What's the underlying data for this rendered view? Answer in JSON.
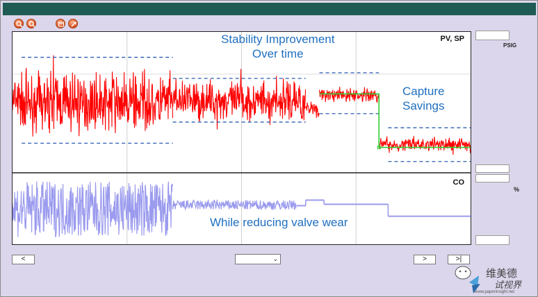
{
  "toolbar": {
    "icons": [
      "zoom-in-icon",
      "zoom-out-icon",
      "calendar-icon",
      "expand-icon"
    ]
  },
  "annotations": {
    "stability": "Stability Improvement\nOver time",
    "capture": "Capture\nSavings",
    "valve": "While reducing valve wear"
  },
  "side_panel": {
    "top_unit": "PSIG",
    "bottom_unit": "%"
  },
  "controls": {
    "prev_label": "<",
    "next_label": ">",
    "end_label": ">|",
    "select_value": ""
  },
  "watermark": {
    "text": "维美德",
    "text2": "试视界",
    "url": "www.paperinsight.net"
  },
  "colors": {
    "pv": "#ff0000",
    "co": "#9a9aee",
    "band": "#2a5db0",
    "sp": "#33cc33",
    "annotation": "#1f6fc0"
  },
  "chart_data": [
    {
      "type": "line",
      "label": "PV, SP",
      "series": [
        {
          "name": "PV",
          "segments": [
            {
              "x": [
                0,
                35
              ],
              "center": 50,
              "amplitude": 28
            },
            {
              "x": [
                35,
                64
              ],
              "center": 51,
              "amplitude": 20
            },
            {
              "x": [
                64,
                67
              ],
              "center": 46,
              "amplitude": 9
            },
            {
              "x": [
                67,
                80
              ],
              "center": 55,
              "amplitude": 7
            },
            {
              "x": [
                80,
                100
              ],
              "center": 20,
              "amplitude": 7
            }
          ]
        },
        {
          "name": "SP",
          "steps": [
            {
              "x": 0,
              "y": 56
            },
            {
              "x": 80,
              "y": 18
            }
          ]
        }
      ],
      "bands": [
        {
          "x": [
            2,
            35
          ],
          "y": [
            21,
            82
          ]
        },
        {
          "x": [
            35,
            64
          ],
          "y": [
            36,
            67
          ]
        },
        {
          "x": [
            67,
            80
          ],
          "y": [
            42,
            71
          ]
        },
        {
          "x": [
            82,
            100
          ],
          "y": [
            8,
            32
          ]
        }
      ]
    },
    {
      "type": "line",
      "label": "CO",
      "series": [
        {
          "name": "CO",
          "segments": [
            {
              "x": [
                0,
                35
              ],
              "center": 50,
              "amplitude": 40
            },
            {
              "x": [
                35,
                62
              ],
              "center": 56,
              "amplitude": 7
            },
            {
              "x": [
                62,
                64
              ],
              "center": 55,
              "amplitude": 0
            },
            {
              "x": [
                64,
                68
              ],
              "center": 63,
              "amplitude": 0
            },
            {
              "x": [
                68,
                80
              ],
              "center": 57,
              "amplitude": 0
            },
            {
              "x": [
                80,
                82
              ],
              "center": 57,
              "amplitude": 0
            },
            {
              "x": [
                82,
                100
              ],
              "center": 40,
              "amplitude": 0
            }
          ]
        }
      ]
    }
  ]
}
